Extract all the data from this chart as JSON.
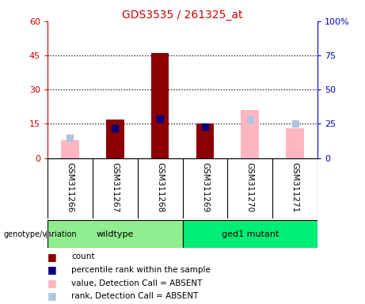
{
  "title": "GDS3535 / 261325_at",
  "samples": [
    "GSM311266",
    "GSM311267",
    "GSM311268",
    "GSM311269",
    "GSM311270",
    "GSM311271"
  ],
  "count": [
    0,
    17,
    46,
    15,
    0,
    0
  ],
  "percentile_rank": [
    null,
    22,
    29,
    23,
    null,
    null
  ],
  "value_absent": [
    8,
    null,
    null,
    15,
    21,
    13
  ],
  "rank_absent": [
    15,
    null,
    null,
    null,
    28,
    25
  ],
  "ylim_left": [
    0,
    60
  ],
  "ylim_right": [
    0,
    100
  ],
  "yticks_left": [
    0,
    15,
    30,
    45,
    60
  ],
  "yticks_right": [
    0,
    25,
    50,
    75,
    100
  ],
  "ytick_labels_left": [
    "0",
    "15",
    "30",
    "45",
    "60"
  ],
  "ytick_labels_right": [
    "0",
    "25",
    "50",
    "75",
    "100%"
  ],
  "hlines": [
    15,
    30,
    45
  ],
  "color_count": "#8B0000",
  "color_percentile": "#000080",
  "color_value_absent": "#FFB6C1",
  "color_rank_absent": "#B0C4DE",
  "color_wildtype": "#90EE90",
  "color_ged1": "#00EE76",
  "title_color": "#CC0000",
  "left_axis_color": "#CC0000",
  "right_axis_color": "#0000CC",
  "bar_width": 0.4
}
